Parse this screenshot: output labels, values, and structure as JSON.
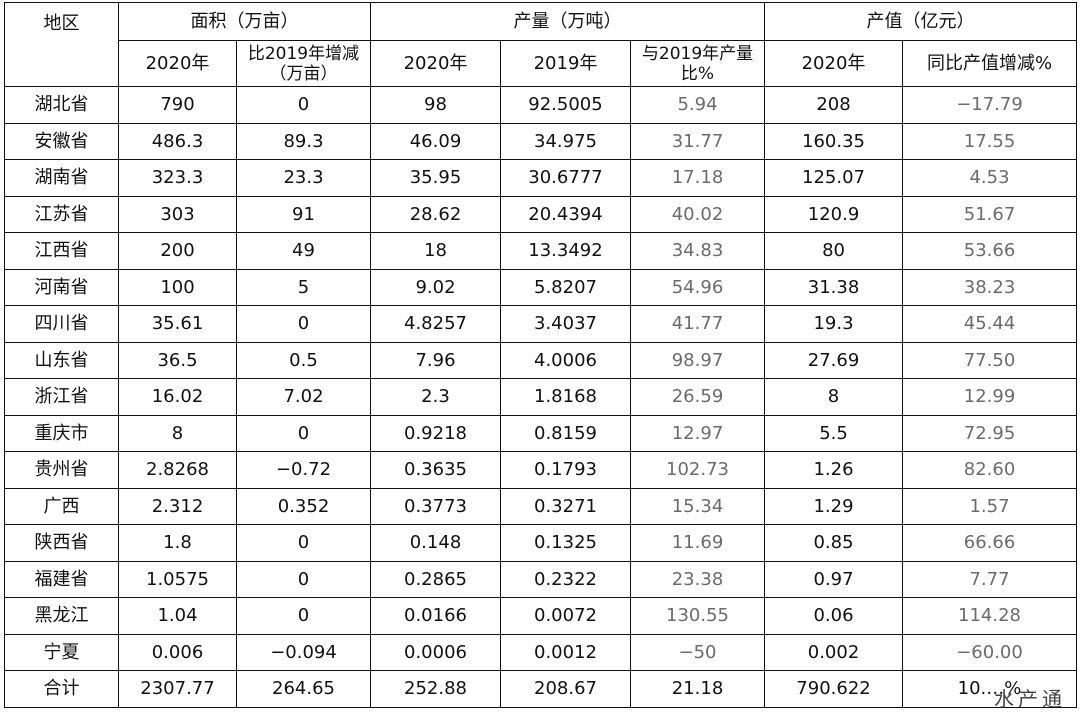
{
  "header": {
    "region": "地区",
    "area_group": "面积（万亩）",
    "output_group": "产量（万吨）",
    "value_group": "产值（亿元）",
    "area_2020": "2020年",
    "area_change": "比2019年增减（万亩）",
    "output_2020": "2020年",
    "output_2019": "2019年",
    "output_ratio": "与2019年产量比%",
    "value_2020": "2020年",
    "value_change": "同比产值增减%"
  },
  "rows": [
    [
      "湖北省",
      "790",
      "0",
      "98",
      "92.5005",
      "5.94",
      "208",
      "−17.79"
    ],
    [
      "安徽省",
      "486.3",
      "89.3",
      "46.09",
      "34.975",
      "31.77",
      "160.35",
      "17.55"
    ],
    [
      "湖南省",
      "323.3",
      "23.3",
      "35.95",
      "30.6777",
      "17.18",
      "125.07",
      "4.53"
    ],
    [
      "江苏省",
      "303",
      "91",
      "28.62",
      "20.4394",
      "40.02",
      "120.9",
      "51.67"
    ],
    [
      "江西省",
      "200",
      "49",
      "18",
      "13.3492",
      "34.83",
      "80",
      "53.66"
    ],
    [
      "河南省",
      "100",
      "5",
      "9.02",
      "5.8207",
      "54.96",
      "31.38",
      "38.23"
    ],
    [
      "四川省",
      "35.61",
      "0",
      "4.8257",
      "3.4037",
      "41.77",
      "19.3",
      "45.44"
    ],
    [
      "山东省",
      "36.5",
      "0.5",
      "7.96",
      "4.0006",
      "98.97",
      "27.69",
      "77.50"
    ],
    [
      "浙江省",
      "16.02",
      "7.02",
      "2.3",
      "1.8168",
      "26.59",
      "8",
      "12.99"
    ],
    [
      "重庆市",
      "8",
      "0",
      "0.9218",
      "0.8159",
      "12.97",
      "5.5",
      "72.95"
    ],
    [
      "贵州省",
      "2.8268",
      "−0.72",
      "0.3635",
      "0.1793",
      "102.73",
      "1.26",
      "82.60"
    ],
    [
      "广西",
      "2.312",
      "0.352",
      "0.3773",
      "0.3271",
      "15.34",
      "1.29",
      "1.57"
    ],
    [
      "陕西省",
      "1.8",
      "0",
      "0.148",
      "0.1325",
      "11.69",
      "0.85",
      "66.66"
    ],
    [
      "福建省",
      "1.0575",
      "0",
      "0.2865",
      "0.2322",
      "23.38",
      "0.97",
      "7.77"
    ],
    [
      "黑龙江",
      "1.04",
      "0",
      "0.0166",
      "0.0072",
      "130.55",
      "0.06",
      "114.28"
    ],
    [
      "宁夏",
      "0.006",
      "−0.094",
      "0.0006",
      "0.0012",
      "−50",
      "0.002",
      "−60.00"
    ],
    [
      "合计",
      "2307.77",
      "264.65",
      "252.88",
      "208.67",
      "21.18",
      "790.622",
      "10.…%"
    ]
  ],
  "gray_columns": [
    5,
    7
  ],
  "watermark": "水产通"
}
